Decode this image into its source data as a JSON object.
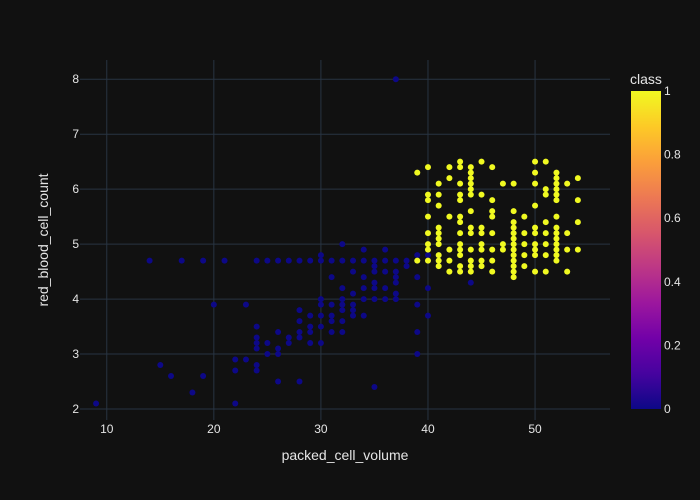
{
  "chart_data": {
    "type": "scatter",
    "xlabel": "packed_cell_volume",
    "ylabel": "red_blood_cell_count",
    "xlim": [
      7.5,
      57
    ],
    "ylim": [
      1.8,
      8.35
    ],
    "x_ticks": [
      10,
      20,
      30,
      40,
      50
    ],
    "y_ticks": [
      2,
      3,
      4,
      5,
      6,
      7,
      8
    ],
    "grid": true,
    "background": "#111111",
    "plot_background": "#111111",
    "grid_color": "#283442",
    "colorbar": {
      "title": "class",
      "min": 0,
      "max": 1,
      "ticks": [
        0,
        0.2,
        0.4,
        0.6,
        0.8,
        1
      ],
      "tick_labels": [
        "0",
        "0.2",
        "0.4",
        "0.6",
        "0.8",
        "1"
      ],
      "colorscale": [
        "#0d0887",
        "#46039f",
        "#7201a8",
        "#9c179e",
        "#bd3786",
        "#d8576b",
        "#ed7953",
        "#fb9f3a",
        "#fdca26",
        "#f0f921"
      ]
    },
    "series": [
      {
        "class_value": 0,
        "points": [
          [
            9,
            2.1
          ],
          [
            14,
            4.7
          ],
          [
            15,
            2.8
          ],
          [
            16,
            2.6
          ],
          [
            17,
            4.7
          ],
          [
            18,
            2.3
          ],
          [
            19,
            4.7
          ],
          [
            19,
            2.6
          ],
          [
            20,
            3.9
          ],
          [
            21,
            4.7
          ],
          [
            22,
            2.9
          ],
          [
            22,
            2.7
          ],
          [
            22,
            2.1
          ],
          [
            23,
            3.9
          ],
          [
            23,
            2.9
          ],
          [
            24,
            4.7
          ],
          [
            24,
            3.5
          ],
          [
            24,
            3.3
          ],
          [
            24,
            3.2
          ],
          [
            24,
            3.1
          ],
          [
            24,
            2.8
          ],
          [
            24,
            2.7
          ],
          [
            25,
            4.7
          ],
          [
            25,
            3.2
          ],
          [
            25,
            3.0
          ],
          [
            26,
            4.7
          ],
          [
            26,
            3.4
          ],
          [
            26,
            3.1
          ],
          [
            26,
            3.0
          ],
          [
            26,
            2.5
          ],
          [
            27,
            4.7
          ],
          [
            27,
            3.3
          ],
          [
            27,
            3.2
          ],
          [
            28,
            4.7
          ],
          [
            28,
            3.8
          ],
          [
            28,
            3.6
          ],
          [
            28,
            3.4
          ],
          [
            28,
            3.3
          ],
          [
            28,
            2.5
          ],
          [
            29,
            4.7
          ],
          [
            29,
            3.7
          ],
          [
            29,
            3.5
          ],
          [
            29,
            3.4
          ],
          [
            29,
            3.2
          ],
          [
            30,
            4.8
          ],
          [
            30,
            4.7
          ],
          [
            30,
            4.0
          ],
          [
            30,
            3.9
          ],
          [
            30,
            3.7
          ],
          [
            30,
            3.5
          ],
          [
            30,
            3.2
          ],
          [
            31,
            4.7
          ],
          [
            31,
            4.4
          ],
          [
            31,
            3.9
          ],
          [
            31,
            3.7
          ],
          [
            31,
            3.6
          ],
          [
            31,
            3.4
          ],
          [
            32,
            5.0
          ],
          [
            32,
            4.7
          ],
          [
            32,
            4.2
          ],
          [
            32,
            4.0
          ],
          [
            32,
            3.9
          ],
          [
            32,
            3.8
          ],
          [
            32,
            3.6
          ],
          [
            32,
            3.4
          ],
          [
            33,
            4.7
          ],
          [
            33,
            4.5
          ],
          [
            33,
            4.1
          ],
          [
            33,
            3.9
          ],
          [
            33,
            3.8
          ],
          [
            33,
            3.7
          ],
          [
            34,
            4.9
          ],
          [
            34,
            4.7
          ],
          [
            34,
            4.4
          ],
          [
            34,
            4.2
          ],
          [
            34,
            4.0
          ],
          [
            34,
            3.7
          ],
          [
            35,
            4.7
          ],
          [
            35,
            4.6
          ],
          [
            35,
            4.5
          ],
          [
            35,
            4.3
          ],
          [
            35,
            4.2
          ],
          [
            35,
            4.0
          ],
          [
            35,
            2.4
          ],
          [
            36,
            4.9
          ],
          [
            36,
            4.7
          ],
          [
            36,
            4.5
          ],
          [
            36,
            4.2
          ],
          [
            36,
            4.0
          ],
          [
            37,
            8.0
          ],
          [
            37,
            4.7
          ],
          [
            37,
            4.5
          ],
          [
            37,
            4.4
          ],
          [
            37,
            4.3
          ],
          [
            37,
            4.1
          ],
          [
            37,
            4.0
          ],
          [
            38,
            4.7
          ],
          [
            38,
            4.6
          ],
          [
            39,
            4.7
          ],
          [
            39,
            4.4
          ],
          [
            39,
            3.9
          ],
          [
            39,
            3.4
          ],
          [
            39,
            3.0
          ],
          [
            39,
            4.8
          ],
          [
            40,
            4.7
          ],
          [
            40,
            4.8
          ],
          [
            40,
            4.2
          ],
          [
            40,
            3.7
          ],
          [
            41,
            4.7
          ],
          [
            41,
            4.8
          ],
          [
            42,
            4.9
          ],
          [
            43,
            4.5
          ],
          [
            44,
            4.3
          ]
        ]
      },
      {
        "class_value": 1,
        "points": [
          [
            39,
            6.3
          ],
          [
            39,
            4.7
          ],
          [
            40,
            6.4
          ],
          [
            40,
            5.9
          ],
          [
            40,
            5.8
          ],
          [
            40,
            5.5
          ],
          [
            40,
            5.2
          ],
          [
            40,
            5.0
          ],
          [
            40,
            4.9
          ],
          [
            40,
            4.7
          ],
          [
            41,
            6.1
          ],
          [
            41,
            5.9
          ],
          [
            41,
            5.7
          ],
          [
            41,
            5.3
          ],
          [
            41,
            5.2
          ],
          [
            41,
            5.1
          ],
          [
            41,
            5.0
          ],
          [
            41,
            4.8
          ],
          [
            41,
            4.7
          ],
          [
            41,
            4.6
          ],
          [
            42,
            6.4
          ],
          [
            42,
            6.2
          ],
          [
            42,
            5.5
          ],
          [
            42,
            4.9
          ],
          [
            42,
            4.7
          ],
          [
            42,
            4.5
          ],
          [
            43,
            6.5
          ],
          [
            43,
            6.4
          ],
          [
            43,
            6.1
          ],
          [
            43,
            5.9
          ],
          [
            43,
            5.8
          ],
          [
            43,
            5.5
          ],
          [
            43,
            5.4
          ],
          [
            43,
            5.2
          ],
          [
            43,
            5.0
          ],
          [
            43,
            4.9
          ],
          [
            43,
            4.8
          ],
          [
            43,
            4.6
          ],
          [
            43,
            4.5
          ],
          [
            44,
            6.4
          ],
          [
            44,
            6.3
          ],
          [
            44,
            6.2
          ],
          [
            44,
            6.1
          ],
          [
            44,
            6.0
          ],
          [
            44,
            5.9
          ],
          [
            44,
            5.6
          ],
          [
            44,
            5.3
          ],
          [
            44,
            5.2
          ],
          [
            44,
            4.9
          ],
          [
            44,
            4.7
          ],
          [
            44,
            4.6
          ],
          [
            44,
            4.5
          ],
          [
            45,
            6.5
          ],
          [
            45,
            5.9
          ],
          [
            45,
            5.3
          ],
          [
            45,
            5.2
          ],
          [
            45,
            5.0
          ],
          [
            45,
            4.9
          ],
          [
            45,
            4.7
          ],
          [
            45,
            4.6
          ],
          [
            46,
            6.4
          ],
          [
            46,
            5.8
          ],
          [
            46,
            5.6
          ],
          [
            46,
            5.5
          ],
          [
            46,
            5.2
          ],
          [
            46,
            4.9
          ],
          [
            46,
            4.7
          ],
          [
            46,
            4.5
          ],
          [
            47,
            6.1
          ],
          [
            47,
            5.0
          ],
          [
            47,
            4.9
          ],
          [
            48,
            6.1
          ],
          [
            48,
            5.6
          ],
          [
            48,
            5.4
          ],
          [
            48,
            5.3
          ],
          [
            48,
            5.2
          ],
          [
            48,
            5.1
          ],
          [
            48,
            5.0
          ],
          [
            48,
            4.9
          ],
          [
            48,
            4.8
          ],
          [
            48,
            4.7
          ],
          [
            48,
            4.6
          ],
          [
            48,
            4.5
          ],
          [
            48,
            4.4
          ],
          [
            49,
            5.5
          ],
          [
            49,
            5.2
          ],
          [
            49,
            5.0
          ],
          [
            49,
            4.8
          ],
          [
            49,
            4.6
          ],
          [
            50,
            6.5
          ],
          [
            50,
            6.3
          ],
          [
            50,
            6.1
          ],
          [
            50,
            5.7
          ],
          [
            50,
            5.3
          ],
          [
            50,
            5.2
          ],
          [
            50,
            5.0
          ],
          [
            50,
            4.9
          ],
          [
            50,
            4.8
          ],
          [
            50,
            4.5
          ],
          [
            51,
            6.5
          ],
          [
            51,
            6.0
          ],
          [
            51,
            5.9
          ],
          [
            51,
            5.4
          ],
          [
            51,
            5.2
          ],
          [
            51,
            5.0
          ],
          [
            51,
            4.8
          ],
          [
            51,
            4.5
          ],
          [
            52,
            6.3
          ],
          [
            52,
            6.2
          ],
          [
            52,
            6.1
          ],
          [
            52,
            6.0
          ],
          [
            52,
            5.9
          ],
          [
            52,
            5.8
          ],
          [
            52,
            5.5
          ],
          [
            52,
            5.3
          ],
          [
            52,
            5.2
          ],
          [
            52,
            5.1
          ],
          [
            52,
            5.0
          ],
          [
            52,
            4.9
          ],
          [
            52,
            4.8
          ],
          [
            52,
            4.7
          ],
          [
            53,
            6.1
          ],
          [
            53,
            5.2
          ],
          [
            53,
            4.9
          ],
          [
            53,
            4.5
          ],
          [
            54,
            6.2
          ],
          [
            54,
            5.8
          ],
          [
            54,
            5.4
          ],
          [
            54,
            4.9
          ]
        ]
      }
    ]
  }
}
